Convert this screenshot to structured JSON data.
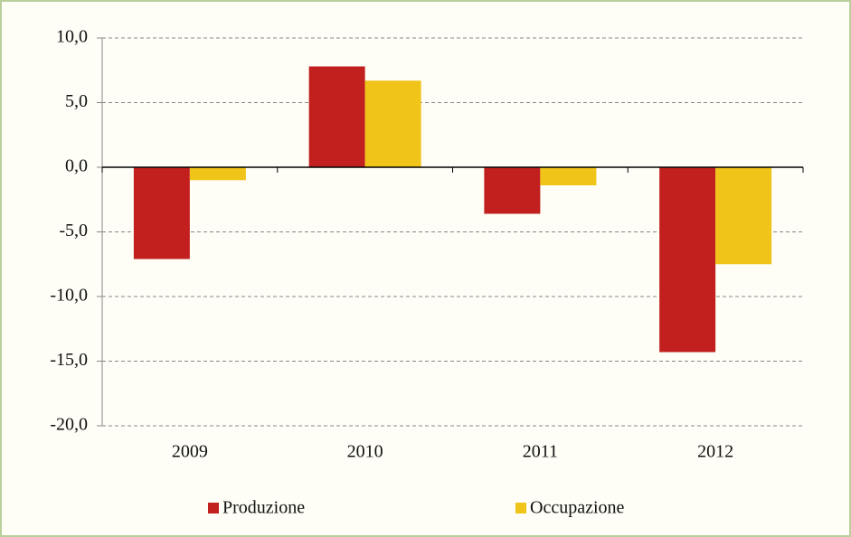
{
  "chart_data": {
    "type": "bar",
    "categories": [
      "2009",
      "2010",
      "2011",
      "2012"
    ],
    "series": [
      {
        "name": "Produzione",
        "color": "#c1201f",
        "values": [
          -7.1,
          7.8,
          -3.6,
          -14.3
        ]
      },
      {
        "name": "Occupazione",
        "color": "#f0c419",
        "values": [
          -1.0,
          6.7,
          -1.4,
          -7.5
        ]
      }
    ],
    "ylim": [
      -20,
      10
    ],
    "yticks": [
      {
        "value": -20,
        "label": "-20,0"
      },
      {
        "value": -15,
        "label": "-15,0"
      },
      {
        "value": -10,
        "label": "-10,0"
      },
      {
        "value": -5,
        "label": "-5,0"
      },
      {
        "value": 0,
        "label": "0,0"
      },
      {
        "value": 5,
        "label": "5,0"
      },
      {
        "value": 10,
        "label": "10,0"
      }
    ],
    "grid": true,
    "legend": "bottom"
  }
}
